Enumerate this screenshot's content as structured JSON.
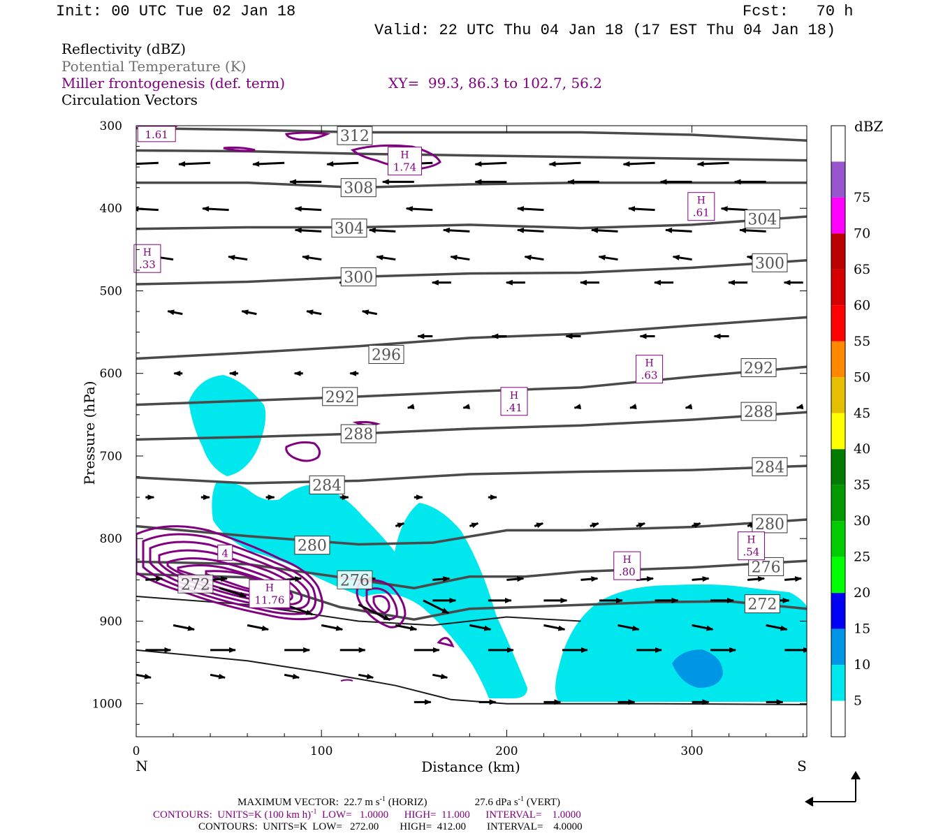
{
  "header": {
    "init": "Init: 00 UTC Tue 02 Jan 18",
    "fcst": "Fcst:   70 h",
    "valid": "Valid: 22 UTC Thu 04 Jan 18 (17 EST Thu 04 Jan 18)"
  },
  "legend": {
    "line1": "Reflectivity (dBZ)",
    "line2": "Potential Temperature (K)",
    "line3": "Miller frontogenesis (def. term)",
    "xy": "XY=  99.3, 86.3 to 102.7, 56.2",
    "line4": "Circulation Vectors"
  },
  "colors": {
    "purple": "#800080",
    "theta": "#4a4a4a",
    "cyan": "#00e8ee"
  },
  "chart_data": {
    "type": "contour",
    "xlabel": "Distance (km)",
    "ylabel": "Pressure (hPa)",
    "xlim": [
      0,
      362
    ],
    "ylim": [
      1040,
      300
    ],
    "x_ticks": [
      0,
      100,
      200,
      300
    ],
    "y_ticks": [
      300,
      400,
      500,
      600,
      700,
      800,
      900,
      1000
    ],
    "x_end_labels": {
      "left": "N",
      "right": "S"
    },
    "colorbar": {
      "title": "dBZ",
      "levels": [
        5,
        10,
        15,
        20,
        25,
        30,
        35,
        40,
        45,
        50,
        55,
        60,
        65,
        70,
        75
      ],
      "colors": [
        "#ffffff",
        "#00e8ee",
        "#0096e6",
        "#0000f5",
        "#00ff00",
        "#00cc00",
        "#009900",
        "#007c00",
        "#ffff00",
        "#e6bf00",
        "#ff8800",
        "#ff0000",
        "#d60000",
        "#bb0000",
        "#ff00ff",
        "#9955cc",
        "#ffffff"
      ]
    },
    "theta_lines": [
      {
        "label": "312",
        "points": [
          [
            0,
            303
          ],
          [
            60,
            305
          ],
          [
            120,
            308
          ],
          [
            180,
            308
          ],
          [
            240,
            308
          ],
          [
            300,
            311
          ],
          [
            362,
            318
          ]
        ]
      },
      {
        "label": "",
        "points": [
          [
            0,
            330
          ],
          [
            60,
            331
          ],
          [
            120,
            334
          ],
          [
            180,
            336
          ],
          [
            240,
            338
          ],
          [
            300,
            340
          ],
          [
            362,
            342
          ]
        ]
      },
      {
        "label": "308",
        "points": [
          [
            0,
            369
          ],
          [
            60,
            369
          ],
          [
            120,
            375
          ],
          [
            180,
            371
          ],
          [
            240,
            369
          ],
          [
            300,
            369
          ],
          [
            362,
            369
          ]
        ]
      },
      {
        "label": "304",
        "points": [
          [
            0,
            425
          ],
          [
            60,
            423
          ],
          [
            120,
            423
          ],
          [
            180,
            420
          ],
          [
            240,
            424
          ],
          [
            300,
            420
          ],
          [
            362,
            410
          ]
        ]
      },
      {
        "label": "300",
        "points": [
          [
            0,
            492
          ],
          [
            60,
            489
          ],
          [
            120,
            483
          ],
          [
            180,
            479
          ],
          [
            240,
            478
          ],
          [
            300,
            472
          ],
          [
            362,
            463
          ]
        ]
      },
      {
        "label": "296",
        "points": [
          [
            0,
            582
          ],
          [
            60,
            575
          ],
          [
            120,
            567
          ],
          [
            180,
            557
          ],
          [
            240,
            552
          ],
          [
            300,
            542
          ],
          [
            362,
            532
          ]
        ]
      },
      {
        "label": "292",
        "points": [
          [
            0,
            638
          ],
          [
            60,
            633
          ],
          [
            120,
            628
          ],
          [
            180,
            622
          ],
          [
            240,
            617
          ],
          [
            300,
            604
          ],
          [
            362,
            592
          ]
        ]
      },
      {
        "label": "288",
        "points": [
          [
            0,
            680
          ],
          [
            60,
            677
          ],
          [
            120,
            673
          ],
          [
            180,
            667
          ],
          [
            240,
            663
          ],
          [
            300,
            656
          ],
          [
            362,
            647
          ]
        ]
      },
      {
        "label": "284",
        "points": [
          [
            0,
            726
          ],
          [
            60,
            733
          ],
          [
            120,
            730
          ],
          [
            180,
            722
          ],
          [
            240,
            719
          ],
          [
            300,
            717
          ],
          [
            362,
            712
          ]
        ]
      },
      {
        "label": "280",
        "points": [
          [
            0,
            785
          ],
          [
            60,
            797
          ],
          [
            120,
            807
          ],
          [
            160,
            805
          ],
          [
            200,
            790
          ],
          [
            240,
            790
          ],
          [
            300,
            786
          ],
          [
            362,
            777
          ]
        ]
      },
      {
        "label": "276",
        "points": [
          [
            0,
            828
          ],
          [
            60,
            831
          ],
          [
            120,
            850
          ],
          [
            150,
            860
          ],
          [
            180,
            846
          ],
          [
            210,
            846
          ],
          [
            240,
            840
          ],
          [
            300,
            835
          ],
          [
            362,
            827
          ]
        ]
      },
      {
        "label": "272",
        "points": [
          [
            0,
            843
          ],
          [
            60,
            847
          ],
          [
            110,
            883
          ],
          [
            150,
            898
          ],
          [
            180,
            885
          ],
          [
            220,
            882
          ],
          [
            280,
            877
          ],
          [
            320,
            876
          ],
          [
            362,
            885
          ]
        ]
      },
      {
        "label": "",
        "points": [
          [
            0,
            870
          ],
          [
            60,
            880
          ],
          [
            120,
            900
          ],
          [
            160,
            905
          ],
          [
            200,
            895
          ],
          [
            240,
            900
          ]
        ]
      },
      {
        "label": "",
        "points": [
          [
            0,
            935
          ],
          [
            60,
            948
          ],
          [
            100,
            962
          ],
          [
            140,
            978
          ],
          [
            170,
            995
          ],
          [
            200,
            1000
          ],
          [
            280,
            1000
          ],
          [
            362,
            1001
          ]
        ]
      }
    ],
    "high_labels": [
      {
        "value": "1.61",
        "x": 11,
        "p": 310
      },
      {
        "value": "1.74",
        "x": 145,
        "p": 342
      },
      {
        "value": ".61",
        "x": 305,
        "p": 397
      },
      {
        "value": ".33",
        "x": 6,
        "p": 460
      },
      {
        "value": ".63",
        "x": 277,
        "p": 594
      },
      {
        "value": ".41",
        "x": 204,
        "p": 633
      },
      {
        "value": ".54",
        "x": 332,
        "p": 808
      },
      {
        "value": ".80",
        "x": 265,
        "p": 832
      },
      {
        "value": "11.76",
        "x": 72,
        "p": 866
      },
      {
        "value": "4",
        "x": 48,
        "p": 817
      }
    ],
    "footer": {
      "line1a": "MAXIMUM VECTOR:  22.7 m s",
      "line1b": "-1",
      "line1c": " (HORIZ)",
      "line1d": "27.6 dPa s",
      "line1e": "-1",
      "line1f": " (VERT)",
      "line2a": "CONTOURS:  UNITS=K (100 km h)",
      "line2b": "-1",
      "line2c": "  LOW=   1.0000      HIGH=  11.000      INTERVAL=    1.0000",
      "line3": "CONTOURS:  UNITS=K  LOW=   272.00        HIGH=  412.00        INTERVAL=    4.0000"
    }
  }
}
